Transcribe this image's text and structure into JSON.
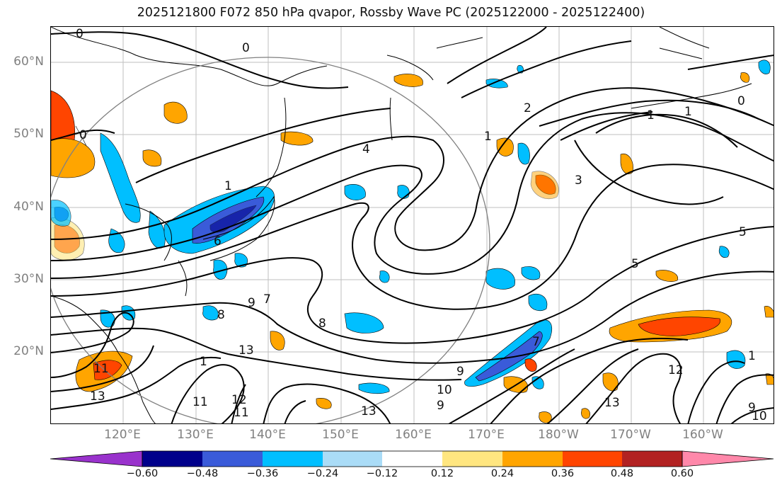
{
  "title": "2025121800 F072 850 hPa qvapor, Rossby Wave PC (2025122000 - 2025122400)",
  "lat_labels": [
    "60°N",
    "50°N",
    "40°N",
    "30°N",
    "20°N"
  ],
  "lon_labels": [
    "120°E",
    "130°E",
    "140°E",
    "150°E",
    "160°E",
    "170°E",
    "180°W",
    "170°W",
    "160°W"
  ],
  "colorbar": {
    "tick_labels": [
      "−0.60",
      "−0.48",
      "−0.36",
      "−0.24",
      "−0.12",
      "0.12",
      "0.24",
      "0.36",
      "0.48",
      "0.60"
    ],
    "colors": [
      "#9932cc",
      "#00008b",
      "#3a5bd9",
      "#00bfff",
      "#aadcf7",
      "#ffffff",
      "#ffe680",
      "#ffa500",
      "#ff4500",
      "#b22222",
      "#ff88aa"
    ]
  },
  "contour_labels": [
    "0",
    "0",
    "0",
    "0",
    "1",
    "1",
    "1",
    "1",
    "1",
    "1",
    "2",
    "3",
    "4",
    "5",
    "5",
    "6",
    "7",
    "7",
    "8",
    "8",
    "9",
    "9",
    "9",
    "9",
    "10",
    "10",
    "11",
    "11",
    "11",
    "12",
    "12",
    "13",
    "13",
    "13",
    "13"
  ],
  "colors": {
    "contour": "#000000",
    "grid": "#bfbfbf",
    "circle": "#808080",
    "axis_label": "#808080"
  }
}
